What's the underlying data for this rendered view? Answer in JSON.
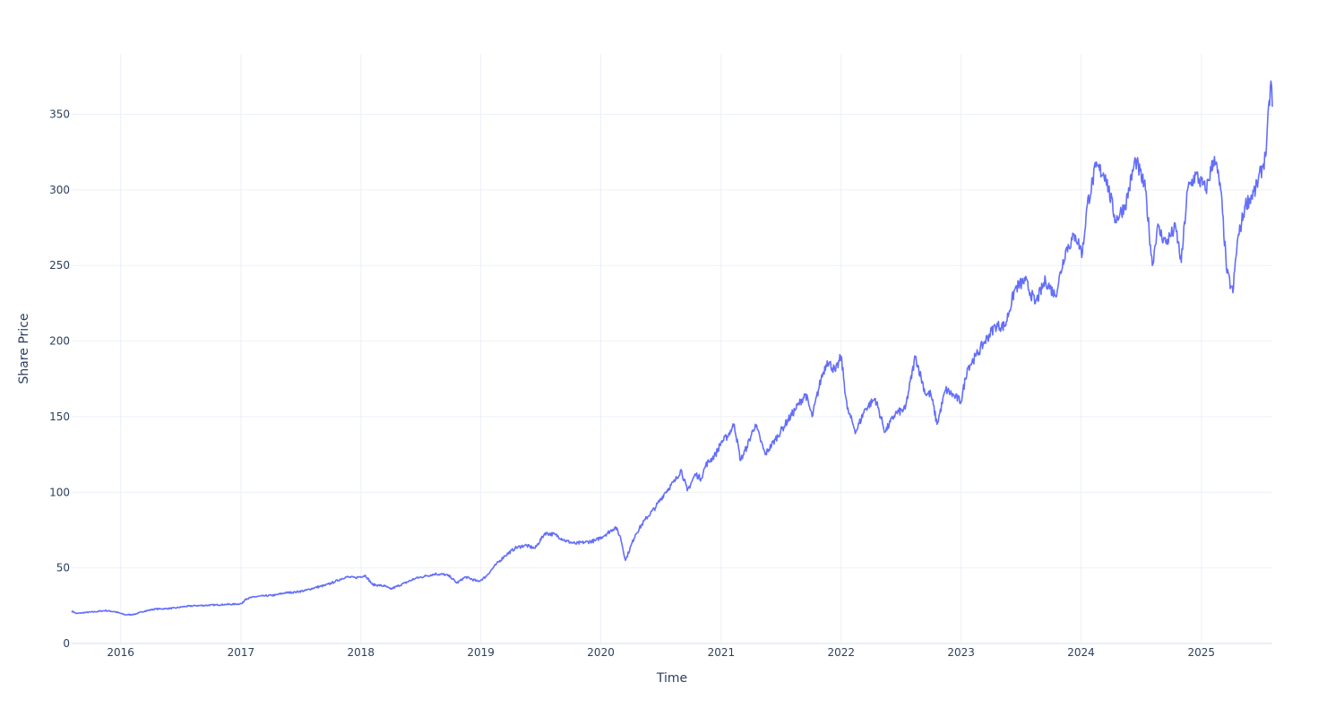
{
  "chart_data": {
    "type": "line",
    "title": "",
    "xlabel": "Time",
    "ylabel": "Share Price",
    "x_tick_labels": [
      "2016",
      "2017",
      "2018",
      "2019",
      "2020",
      "2021",
      "2022",
      "2023",
      "2024",
      "2025"
    ],
    "y_tick_labels": [
      "0",
      "50",
      "100",
      "150",
      "200",
      "250",
      "300",
      "350"
    ],
    "xlim": [
      "2015-08-05",
      "2025-08-05"
    ],
    "ylim": [
      0,
      390
    ],
    "grid": true,
    "legend": "none",
    "colors": {
      "line": "#636efa",
      "grid": "#ebf0f8",
      "text": "#2a3f5f",
      "background": "#ffffff"
    },
    "series": [
      {
        "points": [
          [
            "2015-08-05",
            21.5
          ],
          [
            "2015-08-20",
            19.8
          ],
          [
            "2015-09-15",
            20.5
          ],
          [
            "2015-10-15",
            21.0
          ],
          [
            "2015-11-15",
            21.8
          ],
          [
            "2015-12-15",
            21.0
          ],
          [
            "2016-01-15",
            19.0
          ],
          [
            "2016-02-10",
            19.2
          ],
          [
            "2016-03-15",
            21.5
          ],
          [
            "2016-04-15",
            22.8
          ],
          [
            "2016-05-15",
            23.0
          ],
          [
            "2016-06-15",
            23.5
          ],
          [
            "2016-07-15",
            24.5
          ],
          [
            "2016-08-15",
            25.0
          ],
          [
            "2016-09-15",
            25.2
          ],
          [
            "2016-10-15",
            25.5
          ],
          [
            "2016-11-15",
            25.8
          ],
          [
            "2016-12-15",
            26.0
          ],
          [
            "2017-01-05",
            26.5
          ],
          [
            "2017-01-15",
            29.5
          ],
          [
            "2017-02-15",
            31.0
          ],
          [
            "2017-03-15",
            31.5
          ],
          [
            "2017-04-15",
            32.0
          ],
          [
            "2017-05-15",
            33.5
          ],
          [
            "2017-06-15",
            34.0
          ],
          [
            "2017-07-15",
            35.0
          ],
          [
            "2017-08-15",
            37.0
          ],
          [
            "2017-09-15",
            38.5
          ],
          [
            "2017-10-15",
            41.0
          ],
          [
            "2017-11-15",
            44.0
          ],
          [
            "2017-12-15",
            43.5
          ],
          [
            "2018-01-15",
            45.0
          ],
          [
            "2018-02-05",
            39.0
          ],
          [
            "2018-03-15",
            38.0
          ],
          [
            "2018-04-01",
            36.0
          ],
          [
            "2018-05-15",
            40.0
          ],
          [
            "2018-06-15",
            43.0
          ],
          [
            "2018-07-15",
            44.5
          ],
          [
            "2018-08-15",
            46.0
          ],
          [
            "2018-09-15",
            45.5
          ],
          [
            "2018-10-01",
            44.0
          ],
          [
            "2018-10-20",
            40.0
          ],
          [
            "2018-11-15",
            44.0
          ],
          [
            "2018-12-24",
            41.0
          ],
          [
            "2019-01-15",
            44.0
          ],
          [
            "2019-02-15",
            52.0
          ],
          [
            "2019-03-15",
            58.0
          ],
          [
            "2019-04-15",
            63.0
          ],
          [
            "2019-05-15",
            65.0
          ],
          [
            "2019-06-15",
            63.0
          ],
          [
            "2019-07-15",
            73.0
          ],
          [
            "2019-08-15",
            72.0
          ],
          [
            "2019-09-15",
            68.0
          ],
          [
            "2019-10-15",
            66.0
          ],
          [
            "2019-11-15",
            67.0
          ],
          [
            "2019-12-15",
            68.0
          ],
          [
            "2020-01-15",
            72.0
          ],
          [
            "2020-02-15",
            77.0
          ],
          [
            "2020-03-01",
            70.0
          ],
          [
            "2020-03-16",
            55.0
          ],
          [
            "2020-04-15",
            72.0
          ],
          [
            "2020-05-15",
            82.0
          ],
          [
            "2020-06-15",
            90.0
          ],
          [
            "2020-07-15",
            100.0
          ],
          [
            "2020-08-15",
            108.0
          ],
          [
            "2020-09-01",
            115.0
          ],
          [
            "2020-09-20",
            101.0
          ],
          [
            "2020-10-15",
            112.0
          ],
          [
            "2020-11-01",
            109.0
          ],
          [
            "2020-11-15",
            118.0
          ],
          [
            "2020-12-15",
            125.0
          ],
          [
            "2021-01-01",
            133.0
          ],
          [
            "2021-01-20",
            137.0
          ],
          [
            "2021-02-10",
            145.0
          ],
          [
            "2021-03-01",
            121.0
          ],
          [
            "2021-03-20",
            130.0
          ],
          [
            "2021-04-15",
            145.0
          ],
          [
            "2021-05-15",
            125.0
          ],
          [
            "2021-06-15",
            135.0
          ],
          [
            "2021-07-15",
            145.0
          ],
          [
            "2021-08-15",
            155.0
          ],
          [
            "2021-09-15",
            165.0
          ],
          [
            "2021-10-05",
            150.0
          ],
          [
            "2021-11-01",
            175.0
          ],
          [
            "2021-11-20",
            187.0
          ],
          [
            "2021-12-15",
            180.0
          ],
          [
            "2022-01-01",
            190.0
          ],
          [
            "2022-01-20",
            155.0
          ],
          [
            "2022-02-15",
            140.0
          ],
          [
            "2022-03-15",
            155.0
          ],
          [
            "2022-04-15",
            162.0
          ],
          [
            "2022-05-15",
            140.0
          ],
          [
            "2022-06-15",
            152.0
          ],
          [
            "2022-07-15",
            155.0
          ],
          [
            "2022-08-15",
            190.0
          ],
          [
            "2022-09-15",
            165.0
          ],
          [
            "2022-10-01",
            165.0
          ],
          [
            "2022-10-20",
            145.0
          ],
          [
            "2022-11-15",
            168.0
          ],
          [
            "2022-12-15",
            163.0
          ],
          [
            "2023-01-01",
            160.0
          ],
          [
            "2023-01-20",
            182.0
          ],
          [
            "2023-02-15",
            190.0
          ],
          [
            "2023-03-15",
            200.0
          ],
          [
            "2023-04-15",
            210.0
          ],
          [
            "2023-05-15",
            210.0
          ],
          [
            "2023-06-15",
            235.0
          ],
          [
            "2023-07-15",
            240.0
          ],
          [
            "2023-08-15",
            225.0
          ],
          [
            "2023-09-15",
            240.0
          ],
          [
            "2023-10-15",
            230.0
          ],
          [
            "2023-11-15",
            260.0
          ],
          [
            "2023-12-15",
            270.0
          ],
          [
            "2024-01-05",
            258.0
          ],
          [
            "2024-01-20",
            290.0
          ],
          [
            "2024-02-15",
            315.0
          ],
          [
            "2024-03-15",
            310.0
          ],
          [
            "2024-04-15",
            280.0
          ],
          [
            "2024-05-15",
            290.0
          ],
          [
            "2024-06-15",
            320.0
          ],
          [
            "2024-07-15",
            300.0
          ],
          [
            "2024-08-05",
            250.0
          ],
          [
            "2024-08-20",
            275.0
          ],
          [
            "2024-09-15",
            265.0
          ],
          [
            "2024-10-15",
            275.0
          ],
          [
            "2024-11-01",
            252.0
          ],
          [
            "2024-11-20",
            300.0
          ],
          [
            "2024-12-15",
            310.0
          ],
          [
            "2025-01-15",
            300.0
          ],
          [
            "2025-02-10",
            322.0
          ],
          [
            "2025-03-01",
            300.0
          ],
          [
            "2025-03-20",
            245.0
          ],
          [
            "2025-04-07",
            232.0
          ],
          [
            "2025-04-20",
            265.0
          ],
          [
            "2025-05-15",
            290.0
          ],
          [
            "2025-06-15",
            300.0
          ],
          [
            "2025-07-15",
            322.0
          ],
          [
            "2025-08-01",
            372.0
          ],
          [
            "2025-08-05",
            355.0
          ]
        ]
      }
    ]
  }
}
